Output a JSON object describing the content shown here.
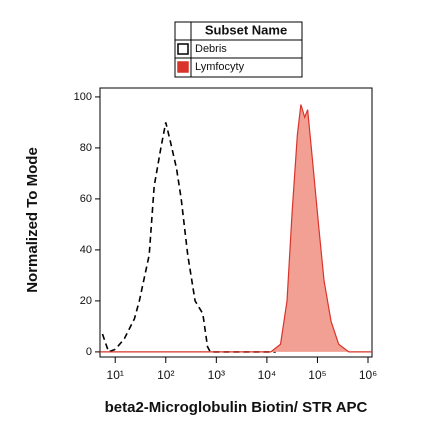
{
  "chart_data": {
    "type": "area",
    "legend_title": "Subset Name",
    "xlabel": "beta2-Microglobulin Biotin/ STR APC",
    "ylabel": "Normalized To Mode",
    "xscale": "log",
    "xlim": [
      5,
      1200000
    ],
    "ylim": [
      -2,
      103.5
    ],
    "xticks": [
      {
        "value": 10,
        "label": "10¹"
      },
      {
        "value": 100,
        "label": "10²"
      },
      {
        "value": 1000,
        "label": "10³"
      },
      {
        "value": 10000,
        "label": "10⁴"
      },
      {
        "value": 100000,
        "label": "10⁵"
      },
      {
        "value": 1000000,
        "label": "10⁶"
      }
    ],
    "yticks": [
      0,
      20,
      40,
      60,
      80,
      100
    ],
    "series": [
      {
        "name": "Debris",
        "color": "#000000",
        "fill": "none",
        "dashed": true,
        "x": [
          5.6,
          7.4,
          10,
          15,
          24,
          30,
          47,
          59,
          80,
          100,
          125,
          163,
          202,
          272,
          380,
          540,
          670,
          760,
          15000
        ],
        "values": [
          7,
          0,
          1,
          5,
          13,
          20,
          38,
          65,
          80,
          90,
          82,
          72,
          60,
          38,
          20,
          15,
          2,
          0,
          0
        ]
      },
      {
        "name": "Lymfocyty",
        "color": "#d9342b",
        "fill": "#f2a093",
        "dashed": false,
        "x": [
          5,
          12000,
          18600,
          25000,
          31600,
          40000,
          47000,
          56000,
          64000,
          80000,
          105000,
          135000,
          186000,
          263000,
          417000,
          1200000
        ],
        "values": [
          0,
          0,
          3,
          20,
          55,
          85,
          97,
          92,
          95,
          75,
          50,
          28,
          12,
          3,
          0,
          0
        ]
      }
    ]
  }
}
